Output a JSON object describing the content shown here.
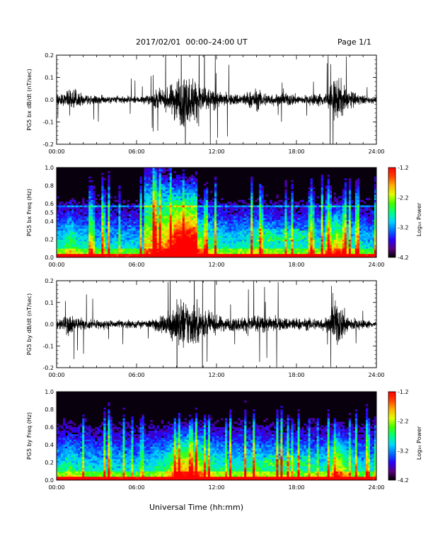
{
  "header": {
    "title": "2017/02/01  00:00–24:00 UT",
    "page": "Page 1/1"
  },
  "footer": {
    "xlabel": "Universal Time (hh:mm)"
  },
  "colorbar": {
    "label": "Log₁₀ Power",
    "ticks": [
      "-1.2",
      "-2.2",
      "-3.2",
      "-4.2"
    ],
    "range": [
      -4.2,
      -1.2
    ],
    "colors": [
      "#000000",
      "#5a0080",
      "#2800ff",
      "#0070ff",
      "#00d8ff",
      "#00ff80",
      "#40ff00",
      "#e0ff00",
      "#ffb000",
      "#ff4000",
      "#ff0000"
    ]
  },
  "chart_data": [
    {
      "type": "line",
      "ylabel": "PG5 bx dB/dt (nT/sec)",
      "x_unit": "hours UT",
      "xlim": [
        0,
        24
      ],
      "ylim": [
        -0.2,
        0.2
      ],
      "yticks": [
        "0.2",
        "0.1",
        "0.0",
        "-0.1",
        "-0.2"
      ],
      "xticks": [
        "00:00",
        "06:00",
        "12:00",
        "18:00",
        "24:00"
      ],
      "envelope": {
        "x": [
          0,
          0.5,
          1,
          1.5,
          2,
          3,
          4,
          5,
          6,
          7,
          7.5,
          8,
          8.5,
          9,
          9.5,
          10,
          10.5,
          11,
          11.5,
          12,
          12.5,
          13,
          14,
          14.5,
          15,
          15.5,
          16,
          17,
          17.5,
          18,
          18.5,
          19,
          20,
          20.5,
          21,
          21.5,
          22,
          23,
          24
        ],
        "amplitude": [
          0.05,
          0.06,
          0.12,
          0.07,
          0.05,
          0.04,
          0.035,
          0.035,
          0.03,
          0.04,
          0.1,
          0.07,
          0.12,
          0.22,
          0.24,
          0.22,
          0.2,
          0.15,
          0.1,
          0.08,
          0.06,
          0.05,
          0.06,
          0.08,
          0.1,
          0.07,
          0.06,
          0.05,
          0.06,
          0.05,
          0.04,
          0.05,
          0.06,
          0.1,
          0.22,
          0.14,
          0.08,
          0.04,
          0.03
        ]
      }
    },
    {
      "type": "heatmap",
      "ylabel": "PG5 bx Freq (Hz)",
      "xlim": [
        0,
        24
      ],
      "ylim": [
        0,
        1.0
      ],
      "yticks": [
        "1.0",
        "0.8",
        "0.6",
        "0.5",
        "0.4",
        "0.2",
        "0.0"
      ],
      "xticks": [
        "00:00",
        "06:00",
        "12:00",
        "18:00",
        "24:00"
      ],
      "colorbar_label": "Log₁₀ Power",
      "color_range": [
        -4.2,
        -1.2
      ]
    },
    {
      "type": "line",
      "ylabel": "PG5 by dB/dt (nT/sec)",
      "xlim": [
        0,
        24
      ],
      "ylim": [
        -0.2,
        0.2
      ],
      "yticks": [
        "0.2",
        "0.1",
        "0.0",
        "-0.1",
        "-0.2"
      ],
      "xticks": [
        "00:00",
        "06:00",
        "12:00",
        "18:00",
        "24:00"
      ],
      "envelope": {
        "x": [
          0,
          0.5,
          1,
          1.5,
          2,
          3,
          4,
          5,
          6,
          7,
          7.5,
          8,
          8.5,
          9,
          9.5,
          10,
          10.5,
          11,
          11.5,
          12,
          12.5,
          13,
          14,
          14.5,
          15,
          15.5,
          16,
          17,
          17.5,
          18,
          18.5,
          19,
          20,
          20.5,
          21,
          21.5,
          22,
          23,
          24
        ],
        "amplitude": [
          0.05,
          0.06,
          0.1,
          0.06,
          0.05,
          0.04,
          0.04,
          0.04,
          0.035,
          0.04,
          0.08,
          0.07,
          0.12,
          0.22,
          0.24,
          0.22,
          0.2,
          0.14,
          0.1,
          0.08,
          0.07,
          0.06,
          0.07,
          0.09,
          0.1,
          0.07,
          0.07,
          0.06,
          0.07,
          0.06,
          0.05,
          0.06,
          0.06,
          0.08,
          0.22,
          0.15,
          0.07,
          0.04,
          0.03
        ]
      }
    },
    {
      "type": "heatmap",
      "ylabel": "PG5 by Freq (Hz)",
      "xlim": [
        0,
        24
      ],
      "ylim": [
        0,
        1.0
      ],
      "yticks": [
        "1.0",
        "0.8",
        "0.6",
        "0.4",
        "0.2",
        "0.0"
      ],
      "xticks": [
        "00:00",
        "06:00",
        "12:00",
        "18:00",
        "24:00"
      ],
      "colorbar_label": "Log₁₀ Power",
      "color_range": [
        -4.2,
        -1.2
      ]
    }
  ]
}
